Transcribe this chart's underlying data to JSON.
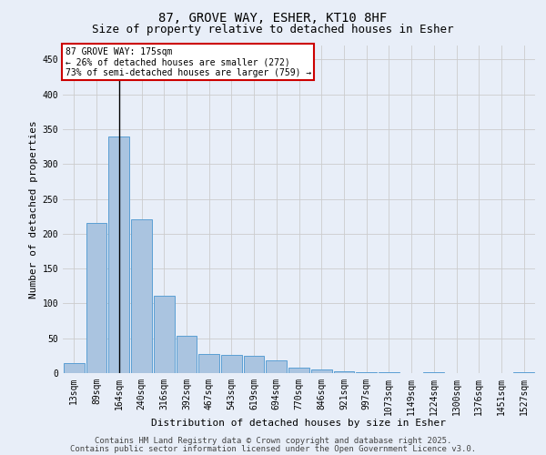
{
  "title_line1": "87, GROVE WAY, ESHER, KT10 8HF",
  "title_line2": "Size of property relative to detached houses in Esher",
  "xlabel": "Distribution of detached houses by size in Esher",
  "ylabel": "Number of detached properties",
  "categories": [
    "13sqm",
    "89sqm",
    "164sqm",
    "240sqm",
    "316sqm",
    "392sqm",
    "467sqm",
    "543sqm",
    "619sqm",
    "694sqm",
    "770sqm",
    "846sqm",
    "921sqm",
    "997sqm",
    "1073sqm",
    "1149sqm",
    "1224sqm",
    "1300sqm",
    "1376sqm",
    "1451sqm",
    "1527sqm"
  ],
  "values": [
    15,
    215,
    340,
    220,
    111,
    54,
    27,
    26,
    25,
    18,
    8,
    5,
    2,
    1,
    1,
    0,
    1,
    0,
    0,
    0,
    1
  ],
  "bar_color": "#aac4e0",
  "bar_edge_color": "#5a9fd4",
  "vline_x": 2,
  "vline_color": "#000000",
  "annotation_line1": "87 GROVE WAY: 175sqm",
  "annotation_line2": "← 26% of detached houses are smaller (272)",
  "annotation_line3": "73% of semi-detached houses are larger (759) →",
  "annotation_box_color": "#cc0000",
  "annotation_box_fill": "#ffffff",
  "ylim": [
    0,
    470
  ],
  "yticks": [
    0,
    50,
    100,
    150,
    200,
    250,
    300,
    350,
    400,
    450
  ],
  "grid_color": "#cccccc",
  "bg_color": "#e8eef8",
  "footer_line1": "Contains HM Land Registry data © Crown copyright and database right 2025.",
  "footer_line2": "Contains public sector information licensed under the Open Government Licence v3.0.",
  "title_fontsize": 10,
  "subtitle_fontsize": 9,
  "axis_label_fontsize": 8,
  "tick_fontsize": 7,
  "annotation_fontsize": 7,
  "footer_fontsize": 6.5
}
